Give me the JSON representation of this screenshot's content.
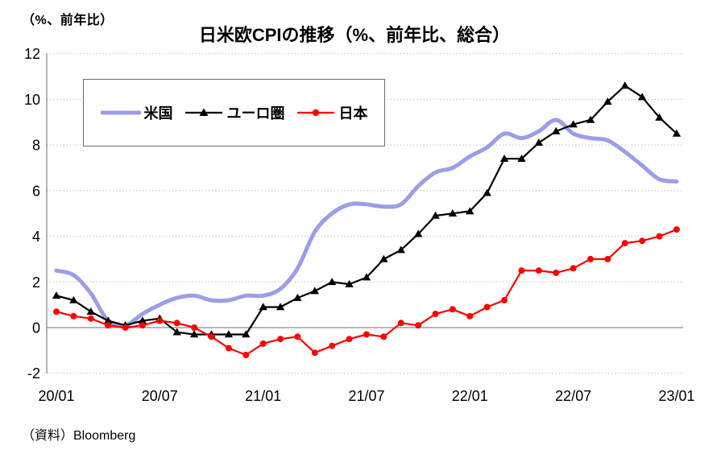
{
  "header": {
    "unit_label": "（%、前年比）",
    "title": "日米欧CPIの推移（%、前年比、総合）"
  },
  "source": "（資料）Bloomberg",
  "colors": {
    "grid": "#bdbdbd",
    "zero_line": "#8a8a8a",
    "axis_line": "#8a8a8a",
    "us": "#9c9ce8",
    "euro": "#000000",
    "japan": "#ff0000"
  },
  "chart_data": {
    "type": "line",
    "title": "日米欧CPIの推移（%、前年比、総合）",
    "ylabel": "（%、前年比）",
    "x_start": "20/01",
    "x_end": "23/01",
    "frequency": "monthly",
    "n_points": 37,
    "x_tick_labels": [
      "20/01",
      "20/07",
      "21/01",
      "21/07",
      "22/01",
      "22/07",
      "23/01"
    ],
    "x_tick_indices": [
      0,
      6,
      12,
      18,
      24,
      30,
      36
    ],
    "y_ticks": [
      12,
      10,
      8,
      6,
      4,
      2,
      0,
      -2
    ],
    "ylim": [
      -2,
      12
    ],
    "grid": "horizontal dotted, solid line at zero",
    "legend_position": "inside top-left",
    "series": [
      {
        "name": "米国",
        "color": "#9c9ce8",
        "width": 5,
        "marker": "none",
        "smooth": true,
        "values": [
          2.5,
          2.3,
          1.5,
          0.3,
          0.1,
          0.6,
          1.0,
          1.3,
          1.4,
          1.2,
          1.2,
          1.4,
          1.4,
          1.7,
          2.6,
          4.2,
          5.0,
          5.4,
          5.4,
          5.3,
          5.4,
          6.2,
          6.8,
          7.0,
          7.5,
          7.9,
          8.5,
          8.3,
          8.6,
          9.1,
          8.5,
          8.3,
          8.2,
          7.7,
          7.1,
          6.5,
          6.4
        ]
      },
      {
        "name": "ユーロ圏",
        "color": "#000000",
        "width": 2.2,
        "marker": "triangle",
        "smooth": false,
        "values": [
          1.4,
          1.2,
          0.7,
          0.3,
          0.1,
          0.3,
          0.4,
          -0.2,
          -0.3,
          -0.3,
          -0.3,
          -0.3,
          0.9,
          0.9,
          1.3,
          1.6,
          2.0,
          1.9,
          2.2,
          3.0,
          3.4,
          4.1,
          4.9,
          5.0,
          5.1,
          5.9,
          7.4,
          7.4,
          8.1,
          8.6,
          8.9,
          9.1,
          9.9,
          10.6,
          10.1,
          9.2,
          8.5
        ]
      },
      {
        "name": "日本",
        "color": "#ff0000",
        "width": 2.2,
        "marker": "circle",
        "smooth": false,
        "values": [
          0.7,
          0.5,
          0.4,
          0.1,
          0.0,
          0.1,
          0.3,
          0.2,
          0.0,
          -0.4,
          -0.9,
          -1.2,
          -0.7,
          -0.5,
          -0.4,
          -1.1,
          -0.8,
          -0.5,
          -0.3,
          -0.4,
          0.2,
          0.1,
          0.6,
          0.8,
          0.5,
          0.9,
          1.2,
          2.5,
          2.5,
          2.4,
          2.6,
          3.0,
          3.0,
          3.7,
          3.8,
          4.0,
          4.3
        ]
      }
    ]
  }
}
